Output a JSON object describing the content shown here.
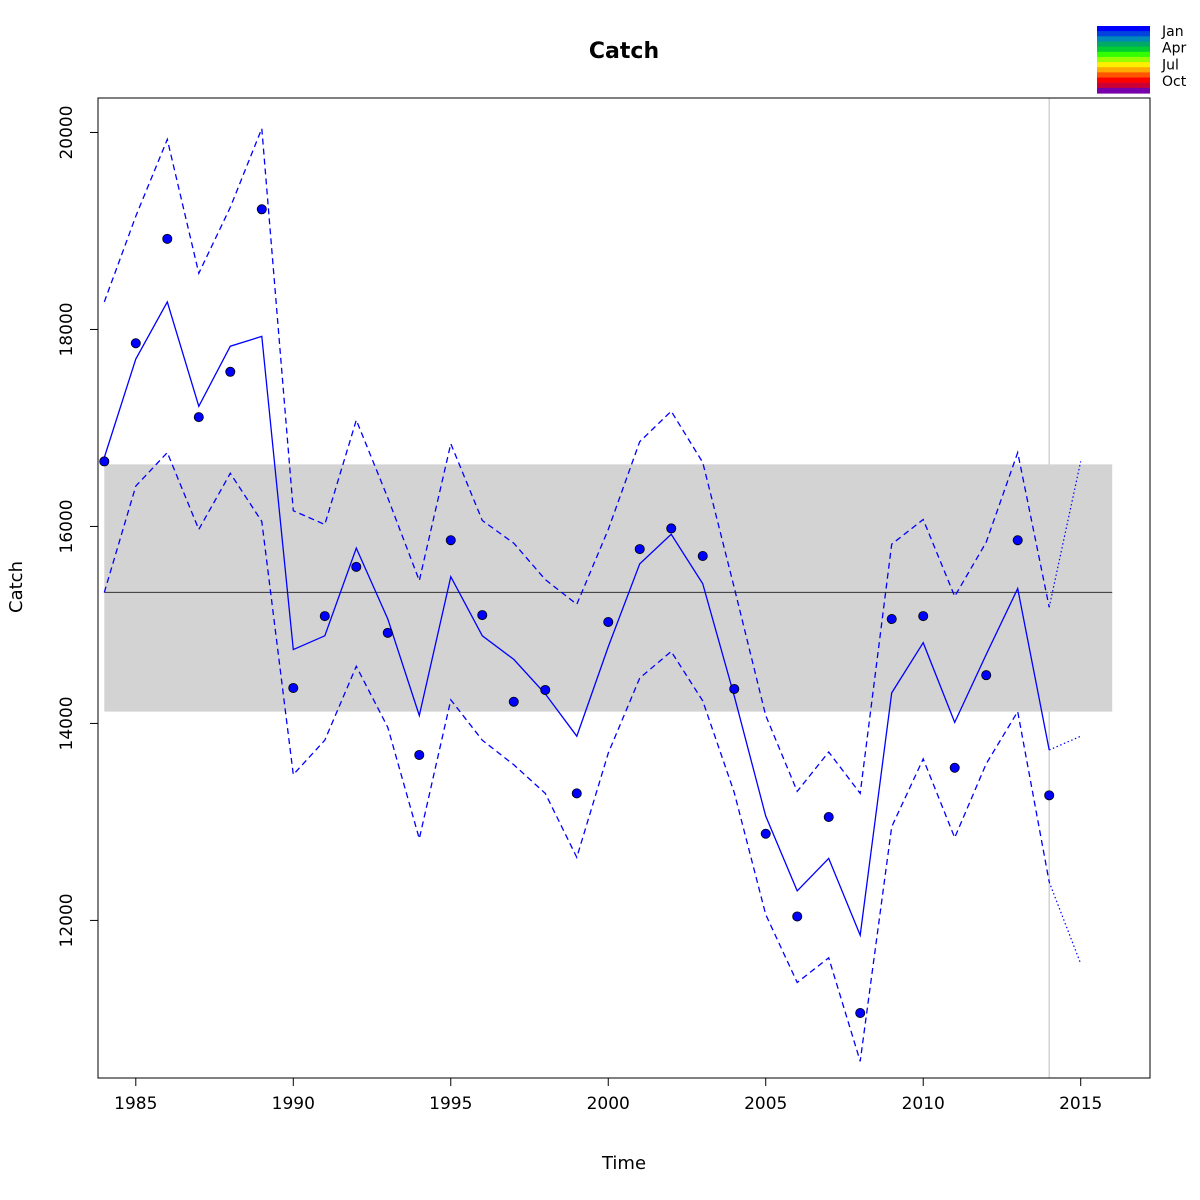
{
  "chart_data": {
    "type": "line",
    "title": "Catch",
    "xlabel": "Time",
    "ylabel": "Catch",
    "xlim": [
      1983.8,
      2017.2
    ],
    "ylim": [
      10400,
      20350
    ],
    "x_ticks": [
      1985,
      1990,
      1995,
      2000,
      2005,
      2010,
      2015
    ],
    "y_ticks": [
      12000,
      14000,
      16000,
      18000,
      20000
    ],
    "grid": false,
    "band": {
      "x_range": [
        1984,
        2016
      ],
      "y_range": [
        14120,
        16630
      ],
      "mean": 15330,
      "color": "#d3d3d3"
    },
    "marker_vline": 2014,
    "legend": {
      "placement": "top-right",
      "labels": [
        "Jan",
        "Apr",
        "Jul",
        "Oct"
      ],
      "colors": [
        "#0000ff",
        "#0044dd",
        "#0088bb",
        "#00aa66",
        "#00cc33",
        "#33ff00",
        "#99ff00",
        "#ffee00",
        "#ffaa00",
        "#ff5500",
        "#ff0000",
        "#cc0033",
        "#7700aa"
      ]
    },
    "series": [
      {
        "type": "scatter",
        "color": "#0000ff",
        "x": [
          1984,
          1985,
          1986,
          1987,
          1988,
          1989,
          1990,
          1991,
          1992,
          1993,
          1994,
          1995,
          1996,
          1997,
          1998,
          1999,
          2000,
          2001,
          2002,
          2003,
          2004,
          2005,
          2006,
          2007,
          2008,
          2009,
          2010,
          2011,
          2012,
          2013,
          2014
        ],
        "y": [
          16660,
          17860,
          18920,
          17110,
          17570,
          19220,
          14360,
          15090,
          15590,
          14920,
          13680,
          15860,
          15100,
          14220,
          14340,
          13290,
          15030,
          15770,
          15980,
          15700,
          14350,
          12880,
          12040,
          13050,
          11060,
          15060,
          15090,
          13550,
          14490,
          15860,
          13270
        ]
      },
      {
        "type": "line",
        "style": "solid",
        "color": "#0000ff",
        "x": [
          1984,
          1985,
          1986,
          1987,
          1988,
          1989,
          1990,
          1991,
          1992,
          1993,
          1994,
          1995,
          1996,
          1997,
          1998,
          1999,
          2000,
          2001,
          2002,
          2003,
          2004,
          2005,
          2006,
          2007,
          2008,
          2009,
          2010,
          2011,
          2012,
          2013,
          2014
        ],
        "y": [
          16700,
          17700,
          18280,
          17220,
          17830,
          17930,
          14750,
          14890,
          15780,
          15060,
          14080,
          15490,
          14890,
          14650,
          14300,
          13870,
          14780,
          15620,
          15920,
          15420,
          14280,
          13060,
          12300,
          12630,
          11850,
          14310,
          14820,
          14010,
          14700,
          15370,
          13730
        ]
      },
      {
        "type": "line",
        "style": "dashed",
        "color": "#0000ff",
        "x": [
          1984,
          1985,
          1986,
          1987,
          1988,
          1989,
          1990,
          1991,
          1992,
          1993,
          1994,
          1995,
          1996,
          1997,
          1998,
          1999,
          2000,
          2001,
          2002,
          2003,
          2004,
          2005,
          2006,
          2007,
          2008,
          2009,
          2010,
          2011,
          2012,
          2013,
          2014
        ],
        "y": [
          18280,
          19150,
          19930,
          18570,
          19240,
          20040,
          16160,
          16020,
          17080,
          16290,
          15450,
          16840,
          16060,
          15830,
          15460,
          15210,
          15970,
          16860,
          17170,
          16650,
          15380,
          14080,
          13310,
          13710,
          13290,
          15820,
          16070,
          15290,
          15840,
          16750,
          15180
        ]
      },
      {
        "type": "line",
        "style": "dashed",
        "color": "#0000ff",
        "x": [
          1984,
          1985,
          1986,
          1987,
          1988,
          1989,
          1990,
          1991,
          1992,
          1993,
          1994,
          1995,
          1996,
          1997,
          1998,
          1999,
          2000,
          2001,
          2002,
          2003,
          2004,
          2005,
          2006,
          2007,
          2008,
          2009,
          2010,
          2011,
          2012,
          2013,
          2014
        ],
        "y": [
          15330,
          16410,
          16750,
          15970,
          16540,
          16050,
          13480,
          13830,
          14580,
          13960,
          12830,
          14240,
          13830,
          13580,
          13290,
          12640,
          13700,
          14460,
          14730,
          14230,
          13300,
          12060,
          11370,
          11620,
          10570,
          12950,
          13640,
          12840,
          13590,
          14120,
          12390
        ]
      },
      {
        "type": "line",
        "style": "dotted",
        "color": "#0000ff",
        "x": [
          2014,
          2015
        ],
        "y": [
          15180,
          16660
        ]
      },
      {
        "type": "line",
        "style": "dotted",
        "color": "#0000ff",
        "x": [
          2014,
          2015
        ],
        "y": [
          13730,
          13870
        ]
      },
      {
        "type": "line",
        "style": "dotted",
        "color": "#0000ff",
        "x": [
          2014,
          2015
        ],
        "y": [
          12390,
          11560
        ]
      }
    ]
  }
}
